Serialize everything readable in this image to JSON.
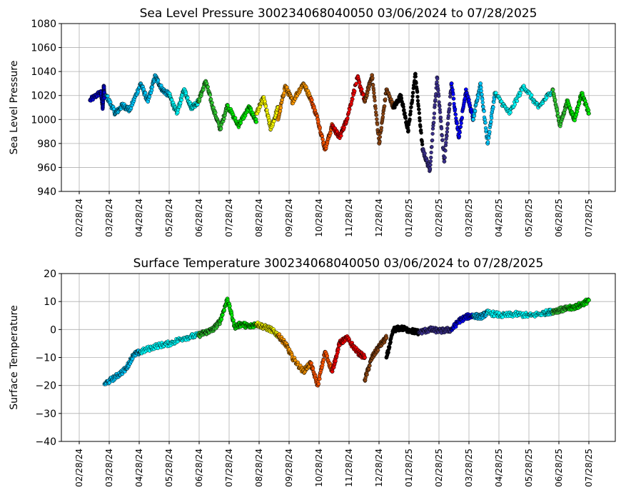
{
  "chart_data": [
    {
      "type": "scatter",
      "title": "Sea Level Pressure 300234068040050  03/06/2024 to 07/28/2025",
      "xlabel": "",
      "ylabel": "Sea Level Pressure",
      "ylim": [
        940,
        1080
      ],
      "yticks": [
        940,
        960,
        980,
        1000,
        1020,
        1040,
        1060,
        1080
      ],
      "xticks": [
        "02/28/24",
        "03/28/24",
        "04/28/24",
        "05/28/24",
        "06/28/24",
        "07/28/24",
        "08/28/24",
        "09/28/24",
        "10/28/24",
        "11/28/24",
        "12/28/24",
        "01/28/25",
        "02/28/25",
        "03/28/25",
        "04/28/25",
        "05/28/25",
        "06/28/25",
        "07/28/25"
      ],
      "grid": true,
      "series": [
        {
          "color": "#0000cc",
          "x": [
            2024.19,
            2024.22,
            2024.225,
            2024.228,
            2024.23
          ],
          "y": [
            1016,
            1023,
            1010,
            1028,
            1018
          ]
        },
        {
          "color": "#00c8ff",
          "x": [
            2024.235,
            2024.26,
            2024.28,
            2024.3,
            2024.33,
            2024.35,
            2024.37,
            2024.39,
            2024.41
          ],
          "y": [
            1020,
            1005,
            1012,
            1008,
            1030,
            1015,
            1036,
            1025,
            1020
          ]
        },
        {
          "color": "#00ffff",
          "x": [
            2024.41,
            2024.43,
            2024.45,
            2024.47,
            2024.49
          ],
          "y": [
            1020,
            1005,
            1025,
            1010,
            1015
          ]
        },
        {
          "color": "#33cc33",
          "x": [
            2024.49,
            2024.51,
            2024.53,
            2024.55,
            2024.57
          ],
          "y": [
            1015,
            1032,
            1010,
            992,
            1012
          ]
        },
        {
          "color": "#00ee00",
          "x": [
            2024.57,
            2024.6,
            2024.63,
            2024.65
          ],
          "y": [
            1012,
            995,
            1010,
            998
          ]
        },
        {
          "color": "#ffff00",
          "x": [
            2024.65,
            2024.67,
            2024.69,
            2024.71
          ],
          "y": [
            1005,
            1018,
            992,
            1010
          ]
        },
        {
          "color": "#ff9900",
          "x": [
            2024.71,
            2024.73,
            2024.75,
            2024.78,
            2024.8
          ],
          "y": [
            1000,
            1028,
            1015,
            1030,
            1018
          ]
        },
        {
          "color": "#ff5500",
          "x": [
            2024.8,
            2024.82,
            2024.84,
            2024.86
          ],
          "y": [
            1018,
            1000,
            975,
            995
          ]
        },
        {
          "color": "#ee0000",
          "x": [
            2024.86,
            2024.88,
            2024.9,
            2024.93,
            2024.95
          ],
          "y": [
            995,
            985,
            1000,
            1035,
            1015
          ]
        },
        {
          "color": "#8b4513",
          "x": [
            2024.95,
            2024.97,
            2024.99,
            2025.01,
            2025.03
          ],
          "y": [
            1015,
            1037,
            980,
            1025,
            1010
          ]
        },
        {
          "color": "#000000",
          "x": [
            2025.03,
            2025.05,
            2025.07,
            2025.09,
            2025.11
          ],
          "y": [
            1010,
            1020,
            990,
            1038,
            975
          ]
        },
        {
          "color": "#3a2f8a",
          "x": [
            2025.11,
            2025.13,
            2025.15,
            2025.17,
            2025.19
          ],
          "y": [
            975,
            958,
            1035,
            965,
            1030
          ]
        },
        {
          "color": "#0000ff",
          "x": [
            2025.19,
            2025.21,
            2025.23,
            2025.25
          ],
          "y": [
            1030,
            985,
            1025,
            1000
          ]
        },
        {
          "color": "#00c8ff",
          "x": [
            2025.25,
            2025.27,
            2025.29,
            2025.31
          ],
          "y": [
            1000,
            1030,
            980,
            1022
          ]
        },
        {
          "color": "#00ffff",
          "x": [
            2025.31,
            2025.35,
            2025.39,
            2025.43,
            2025.47
          ],
          "y": [
            1022,
            1005,
            1028,
            1010,
            1025
          ]
        },
        {
          "color": "#33cc33",
          "x": [
            2025.47,
            2025.49,
            2025.51
          ],
          "y": [
            1025,
            995,
            1015
          ]
        },
        {
          "color": "#00ee00",
          "x": [
            2025.51,
            2025.53,
            2025.55,
            2025.57
          ],
          "y": [
            1015,
            1000,
            1022,
            1005
          ]
        }
      ]
    },
    {
      "type": "scatter",
      "title": "Surface Temperature 300234068040050  03/06/2024 to 07/28/2025",
      "xlabel": "",
      "ylabel": "Surface Temperature",
      "ylim": [
        -40,
        20
      ],
      "yticks": [
        -40,
        -30,
        -20,
        -10,
        0,
        10,
        20
      ],
      "xticks": [
        "02/28/24",
        "03/28/24",
        "04/28/24",
        "05/28/24",
        "06/28/24",
        "07/28/24",
        "08/28/24",
        "09/28/24",
        "10/28/24",
        "11/28/24",
        "12/28/24",
        "01/28/25",
        "02/28/25",
        "03/28/25",
        "04/28/25",
        "05/28/25",
        "06/28/25",
        "07/28/25"
      ],
      "grid": true,
      "series": [
        {
          "color": "#00c8ff",
          "x": [
            2024.23,
            2024.26,
            2024.29,
            2024.31,
            2024.33
          ],
          "y": [
            -19.5,
            -17,
            -14,
            -9,
            -8
          ]
        },
        {
          "color": "#00ffff",
          "x": [
            2024.33,
            2024.37,
            2024.41,
            2024.45,
            2024.49
          ],
          "y": [
            -8,
            -6,
            -5,
            -3,
            -2
          ]
        },
        {
          "color": "#33cc33",
          "x": [
            2024.49,
            2024.51,
            2024.53,
            2024.55
          ],
          "y": [
            -2,
            -1,
            0,
            3
          ]
        },
        {
          "color": "#00ee00",
          "x": [
            2024.55,
            2024.57,
            2024.59,
            2024.61,
            2024.63,
            2024.65
          ],
          "y": [
            3,
            11,
            1,
            2,
            1,
            2
          ]
        },
        {
          "color": "#ffff00",
          "x": [
            2024.65,
            2024.67,
            2024.69,
            2024.71
          ],
          "y": [
            2,
            1,
            0,
            -2
          ]
        },
        {
          "color": "#ff9900",
          "x": [
            2024.71,
            2024.73,
            2024.75,
            2024.78,
            2024.8
          ],
          "y": [
            -2,
            -5,
            -10,
            -15,
            -12
          ]
        },
        {
          "color": "#ff5500",
          "x": [
            2024.8,
            2024.82,
            2024.84,
            2024.86
          ],
          "y": [
            -12,
            -20,
            -8,
            -15
          ]
        },
        {
          "color": "#ee0000",
          "x": [
            2024.86,
            2024.88,
            2024.9,
            2024.93,
            2024.95
          ],
          "y": [
            -15,
            -5,
            -3,
            -8,
            -10
          ]
        },
        {
          "color": "#8b4513",
          "x": [
            2024.95,
            2024.97,
            2024.99,
            2025.01
          ],
          "y": [
            -18,
            -10,
            -6,
            -3
          ]
        },
        {
          "color": "#000000",
          "x": [
            2025.01,
            2025.03,
            2025.05,
            2025.08,
            2025.1
          ],
          "y": [
            -10,
            0,
            0.5,
            -0.5,
            -1
          ]
        },
        {
          "color": "#3a2f8a",
          "x": [
            2025.1,
            2025.13,
            2025.16,
            2025.19
          ],
          "y": [
            -1,
            0,
            -0.5,
            0
          ]
        },
        {
          "color": "#0000ff",
          "x": [
            2025.19,
            2025.21,
            2025.23,
            2025.25
          ],
          "y": [
            0,
            3,
            4.5,
            5
          ]
        },
        {
          "color": "#00c8ff",
          "x": [
            2025.25,
            2025.27,
            2025.29
          ],
          "y": [
            5,
            4.5,
            6
          ]
        },
        {
          "color": "#00ffff",
          "x": [
            2025.29,
            2025.33,
            2025.37,
            2025.41,
            2025.45,
            2025.47
          ],
          "y": [
            6,
            5,
            5.5,
            5,
            6,
            6.5
          ]
        },
        {
          "color": "#33cc33",
          "x": [
            2025.47,
            2025.49,
            2025.51
          ],
          "y": [
            6.5,
            7,
            7.5
          ]
        },
        {
          "color": "#00ee00",
          "x": [
            2025.51,
            2025.53,
            2025.55,
            2025.57
          ],
          "y": [
            7.5,
            8,
            9,
            10.5
          ]
        }
      ]
    }
  ]
}
